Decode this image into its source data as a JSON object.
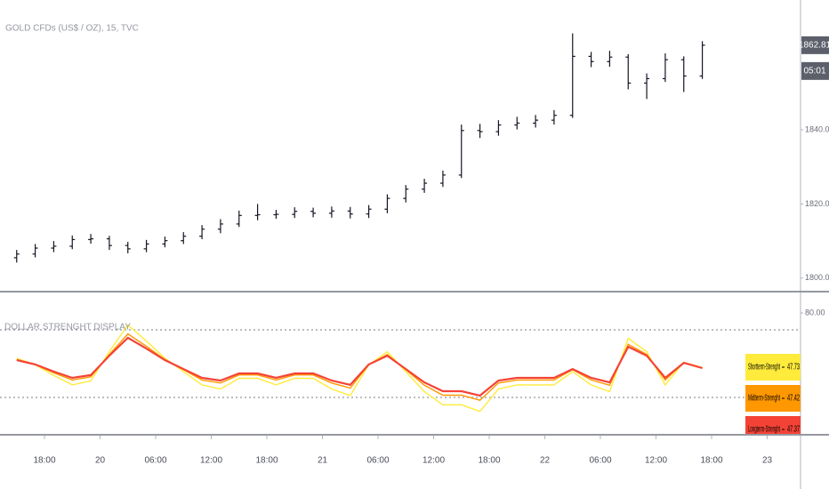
{
  "chart_data": [
    {
      "type": "ohlc",
      "title": "GOLD CFDs (US$ / OZ), 15, TVC",
      "color": "#131722",
      "x": [
        3,
        5,
        7,
        9,
        11,
        13,
        15,
        17,
        19,
        21,
        23,
        25,
        27,
        29,
        31,
        33,
        35,
        37,
        39,
        41,
        43,
        45,
        47,
        49,
        51,
        53,
        55,
        57,
        59,
        61,
        63,
        65,
        67,
        69,
        71,
        73,
        75,
        77
      ],
      "open": [
        1805.5,
        1806.5,
        1808.1,
        1808.6,
        1810.4,
        1810.6,
        1808.8,
        1807.9,
        1809.2,
        1810.1,
        1811.3,
        1813.2,
        1814.6,
        1816.9,
        1817.1,
        1817.2,
        1818.0,
        1817.5,
        1818.1,
        1817.3,
        1818.6,
        1821.5,
        1824.0,
        1825.6,
        1827.8,
        1839.8,
        1839.5,
        1841.3,
        1841.8,
        1842.6,
        1843.9,
        1859.8,
        1858.4,
        1859.6,
        1852.6,
        1853.8,
        1858.9,
        1854.5
      ],
      "high": [
        1807.6,
        1809.2,
        1810.0,
        1811.5,
        1811.9,
        1811.4,
        1809.8,
        1810.3,
        1811.2,
        1812.4,
        1814.3,
        1815.9,
        1818.2,
        1820.0,
        1818.4,
        1819.1,
        1819.0,
        1819.3,
        1819.2,
        1819.7,
        1822.6,
        1825.1,
        1826.8,
        1829.0,
        1841.4,
        1841.6,
        1842.6,
        1843.5,
        1844.0,
        1845.3,
        1866.0,
        1861.0,
        1861.3,
        1860.4,
        1855.2,
        1860.6,
        1859.8,
        1863.9
      ],
      "low": [
        1804.2,
        1805.6,
        1807.0,
        1807.8,
        1809.3,
        1807.6,
        1806.7,
        1807.0,
        1808.3,
        1809.2,
        1810.5,
        1812.1,
        1813.8,
        1815.6,
        1816.0,
        1816.2,
        1816.4,
        1816.3,
        1816.1,
        1816.2,
        1817.5,
        1820.4,
        1823.0,
        1824.6,
        1827.0,
        1837.8,
        1838.4,
        1840.1,
        1840.6,
        1841.4,
        1843.2,
        1856.9,
        1857.0,
        1850.9,
        1848.3,
        1852.9,
        1850.2,
        1853.7
      ],
      "close": [
        1806.5,
        1808.1,
        1808.6,
        1810.4,
        1810.6,
        1808.8,
        1807.9,
        1809.2,
        1810.1,
        1811.3,
        1813.2,
        1814.6,
        1816.9,
        1817.1,
        1817.2,
        1818.0,
        1817.5,
        1818.1,
        1817.3,
        1818.6,
        1821.5,
        1824.0,
        1825.6,
        1827.8,
        1839.8,
        1839.5,
        1841.3,
        1841.8,
        1842.6,
        1843.9,
        1859.8,
        1858.4,
        1859.6,
        1852.6,
        1853.8,
        1858.9,
        1854.5,
        1862.81
      ],
      "xlim": [
        1.2,
        87.6
      ],
      "ylim": [
        1796.6,
        1875
      ],
      "yticks": [
        {
          "value": 1800,
          "label": "1800.00"
        },
        {
          "value": 1820,
          "label": "1820.00"
        },
        {
          "value": 1840,
          "label": "1840.00"
        }
      ],
      "countdown": "05:01"
    },
    {
      "type": "line",
      "title": "DOLLAR STRENGHT DISPLAY",
      "x": [
        3,
        5,
        7,
        9,
        11,
        13,
        15,
        17,
        19,
        21,
        23,
        25,
        27,
        29,
        31,
        33,
        35,
        37,
        39,
        41,
        43,
        45,
        47,
        49,
        51,
        53,
        55,
        57,
        59,
        61,
        63,
        65,
        67,
        69,
        71,
        73,
        75,
        77
      ],
      "series": [
        {
          "name": "Shortterm-Strenght",
          "color": "#ffeb3b",
          "values": [
            53.2,
            49.3,
            43.0,
            37.4,
            39.8,
            57.1,
            72.9,
            63.4,
            53.2,
            45.2,
            37.4,
            35.0,
            41.3,
            41.3,
            37.4,
            41.3,
            41.3,
            35.0,
            31.1,
            49.3,
            57.1,
            45.2,
            33.4,
            25.6,
            25.6,
            21.7,
            35.0,
            37.4,
            37.4,
            37.4,
            45.2,
            37.4,
            33.4,
            65.0,
            57.1,
            37.4,
            50.8,
            47.73
          ]
        },
        {
          "name": "Midterm-Strenght",
          "color": "#ff9800",
          "values": [
            52.4,
            49.4,
            44.6,
            40.3,
            42.2,
            55.4,
            67.6,
            60.3,
            52.4,
            46.4,
            40.3,
            38.5,
            43.3,
            43.3,
            40.3,
            43.3,
            43.3,
            38.5,
            35.5,
            49.4,
            55.4,
            46.4,
            37.2,
            31.3,
            31.3,
            28.3,
            38.5,
            40.3,
            40.3,
            40.3,
            46.4,
            40.3,
            37.2,
            61.5,
            55.4,
            40.3,
            50.6,
            47.42
          ]
        },
        {
          "name": "Longterm-Strenght",
          "color": "#f44336",
          "values": [
            52.1,
            49.5,
            45.3,
            41.6,
            43.2,
            54.7,
            65.3,
            58.9,
            52.1,
            46.8,
            41.6,
            40.0,
            44.2,
            44.2,
            41.6,
            44.2,
            44.2,
            40.0,
            37.4,
            49.5,
            54.7,
            46.8,
            38.9,
            33.7,
            33.7,
            31.1,
            40.0,
            41.6,
            41.6,
            41.6,
            46.8,
            41.6,
            38.9,
            60.0,
            54.7,
            41.6,
            50.5,
            47.37
          ]
        }
      ],
      "levels": [
        70,
        30
      ],
      "xlim": [
        1.2,
        87.6
      ],
      "ylim": [
        8.4,
        91.6
      ],
      "yticks": [
        {
          "value": 80,
          "label": "80.00"
        }
      ],
      "xticks": [
        {
          "value": 6,
          "label": "18:00"
        },
        {
          "value": 12,
          "label": "20"
        },
        {
          "value": 18,
          "label": "06:00"
        },
        {
          "value": 24,
          "label": "12:00"
        },
        {
          "value": 30,
          "label": "18:00"
        },
        {
          "value": 36,
          "label": "21"
        },
        {
          "value": 42,
          "label": "06:00"
        },
        {
          "value": 48,
          "label": "12:00"
        },
        {
          "value": 54,
          "label": "18:00"
        },
        {
          "value": 60,
          "label": "22"
        },
        {
          "value": 66,
          "label": "06:00"
        },
        {
          "value": 72,
          "label": "12:00"
        },
        {
          "value": 78,
          "label": "18:00"
        },
        {
          "value": 84,
          "label": "23"
        }
      ]
    }
  ]
}
